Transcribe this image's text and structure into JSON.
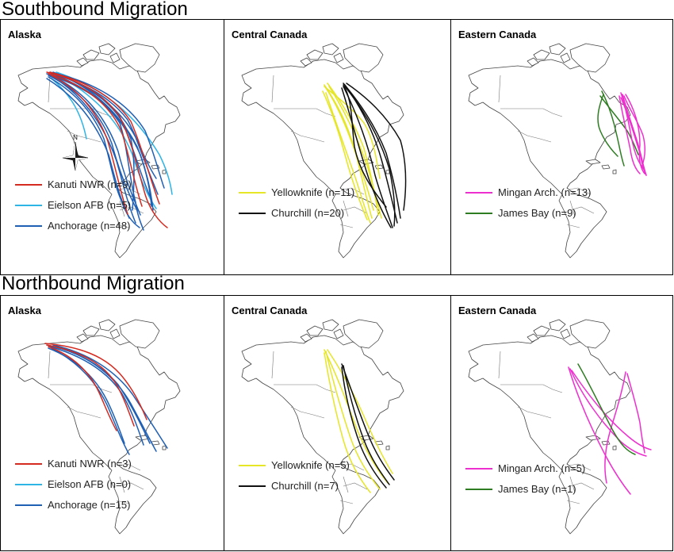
{
  "sections": [
    {
      "title": "Southbound Migration",
      "panels": [
        {
          "title": "Alaska",
          "legend": [
            {
              "label": "Kanuti NWR (n=9)",
              "color": "#d42a20"
            },
            {
              "label": "Eielson AFB (n=5)",
              "color": "#2fb4e6"
            },
            {
              "label": "Anchorage (n=48)",
              "color": "#1f5fb4"
            }
          ],
          "has_compass": true,
          "compass_label": "N"
        },
        {
          "title": "Central Canada",
          "legend": [
            {
              "label": "Yellowknife (n=11)",
              "color": "#e6e626"
            },
            {
              "label": "Churchill (n=20)",
              "color": "#111111"
            }
          ],
          "has_compass": false
        },
        {
          "title": "Eastern Canada",
          "legend": [
            {
              "label": "Mingan Arch. (n=13)",
              "color": "#ee2fcf"
            },
            {
              "label": "James Bay (n=9)",
              "color": "#2e7d22"
            }
          ],
          "has_compass": false
        }
      ]
    },
    {
      "title": "Northbound Migration",
      "panels": [
        {
          "title": "Alaska",
          "legend": [
            {
              "label": "Kanuti NWR (n=3)",
              "color": "#d42a20"
            },
            {
              "label": "Eielson AFB (n=0)",
              "color": "#2fb4e6"
            },
            {
              "label": "Anchorage (n=15)",
              "color": "#1f5fb4"
            }
          ],
          "has_compass": false
        },
        {
          "title": "Central Canada",
          "legend": [
            {
              "label": "Yellowknife (n=5)",
              "color": "#e6e626"
            },
            {
              "label": "Churchill (n=7)",
              "color": "#111111"
            }
          ],
          "has_compass": false
        },
        {
          "title": "Eastern Canada",
          "legend": [
            {
              "label": "Mingan Arch. (n=5)",
              "color": "#ee2fcf"
            },
            {
              "label": "James Bay (n=1)",
              "color": "#2e7d22"
            }
          ],
          "has_compass": false
        }
      ]
    }
  ]
}
